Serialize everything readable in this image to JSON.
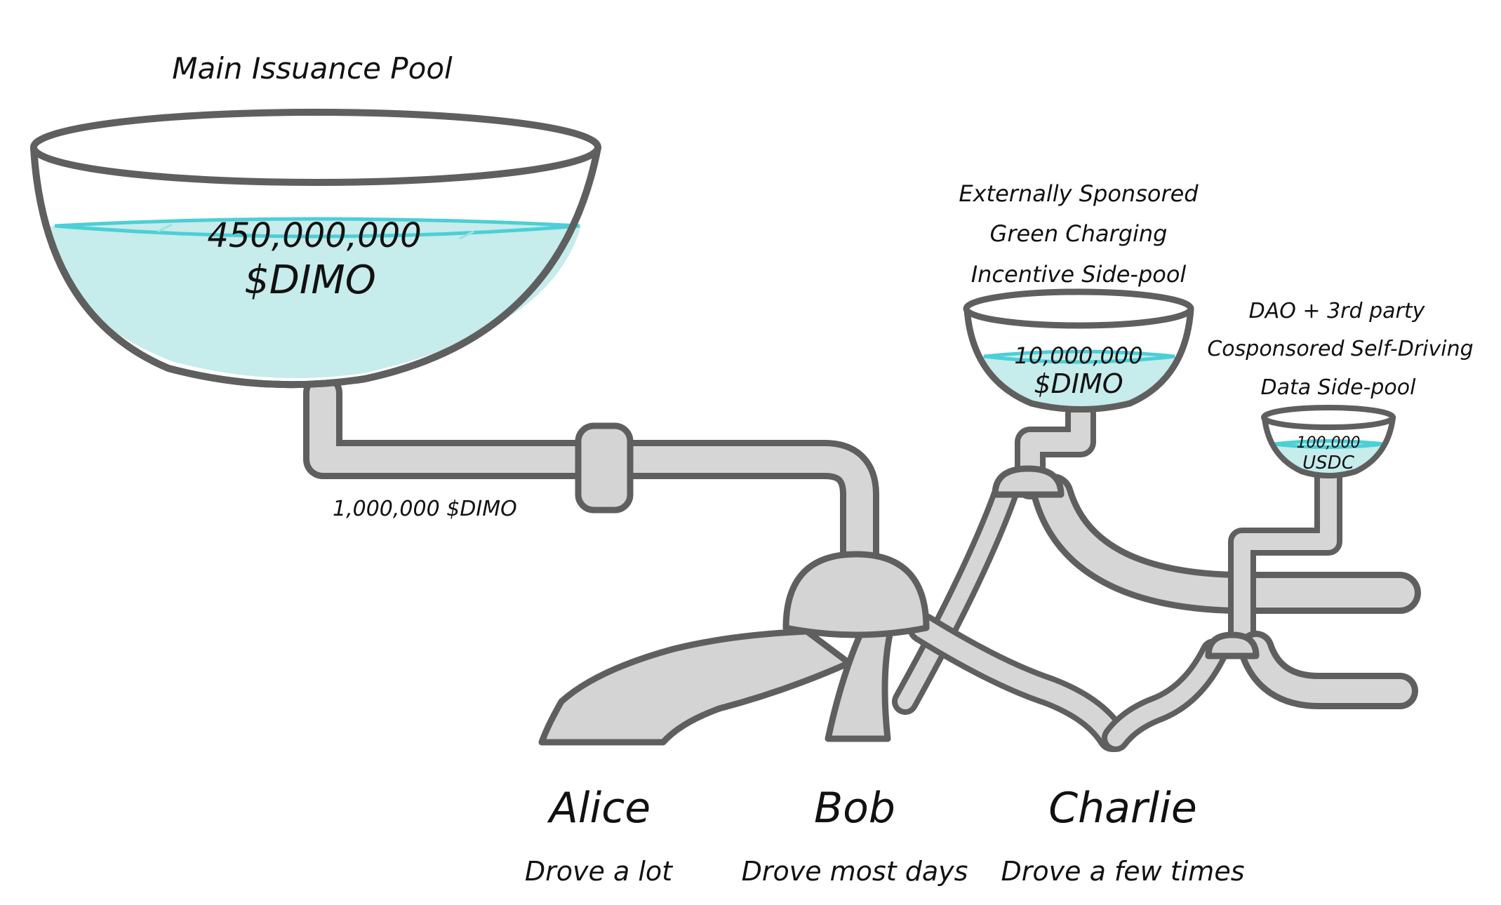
{
  "pools": {
    "main": {
      "title": "Main Issuance Pool",
      "amount": "450,000,000",
      "unit": "$DIMO",
      "fill": 0.52
    },
    "green": {
      "title_lines": [
        "Externally Sponsored",
        "Green Charging",
        "Incentive Side-pool"
      ],
      "amount": "10,000,000",
      "unit": "$DIMO",
      "fill": 0.55
    },
    "dao": {
      "title_lines": [
        "DAO + 3rd party",
        "Cosponsored Self-Driving",
        "Data Side-pool"
      ],
      "amount": "100,000",
      "unit": "USDC",
      "fill": 0.45
    }
  },
  "flow_label": "1,000,000 $DIMO",
  "recipients": [
    {
      "name": "Alice",
      "note": "Drove a lot"
    },
    {
      "name": "Bob",
      "note": "Drove most days"
    },
    {
      "name": "Charlie",
      "note": "Drove a few times"
    }
  ],
  "colors": {
    "outline": "#5f5f5f",
    "metal": "#d4d4d4",
    "water": "#c6eceb",
    "waterline": "#4ccfd6",
    "text": "#111111"
  }
}
